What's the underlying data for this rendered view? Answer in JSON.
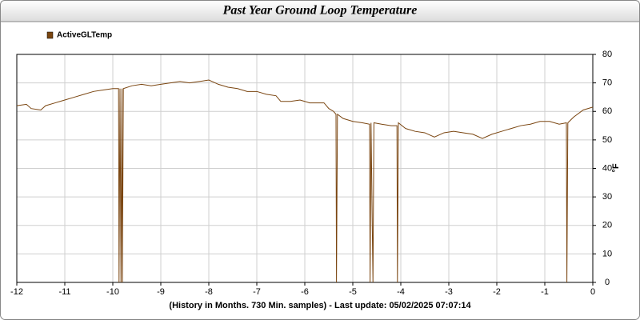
{
  "chart_data": {
    "type": "line",
    "title": "Past Year Ground Loop Temperature",
    "xlabel": "(History in Months. 730 Min. samples) - Last update: 05/02/2025 07:07:14",
    "ylabel": "°F",
    "xlim": [
      -12,
      0
    ],
    "xticks": [
      -12,
      -11,
      -10,
      -9,
      -8,
      -7,
      -6,
      -5,
      -4,
      -3,
      -2,
      -1,
      0
    ],
    "ylim": [
      0,
      80
    ],
    "yticks": [
      0,
      10,
      20,
      30,
      40,
      50,
      60,
      70,
      80
    ],
    "grid": true,
    "legend": "top-left",
    "series": [
      {
        "name": "ActiveGLTemp",
        "color": "#7a4510",
        "x": [
          -12,
          -11.8,
          -11.7,
          -11.5,
          -11.4,
          -11.2,
          -11,
          -10.8,
          -10.6,
          -10.4,
          -10.2,
          -10,
          -9.88,
          -9.87,
          -9.85,
          -9.83,
          -9.81,
          -9.8,
          -9.78,
          -9.6,
          -9.4,
          -9.2,
          -9,
          -8.8,
          -8.6,
          -8.4,
          -8.2,
          -8,
          -7.8,
          -7.6,
          -7.4,
          -7.2,
          -7,
          -6.8,
          -6.6,
          -6.5,
          -6.3,
          -6.1,
          -5.9,
          -5.7,
          -5.6,
          -5.5,
          -5.4,
          -5.35,
          -5.34,
          -5.32,
          -5.2,
          -5,
          -4.8,
          -4.65,
          -4.64,
          -4.62,
          -4.58,
          -4.56,
          -4.4,
          -4.2,
          -4.08,
          -4.07,
          -4.05,
          -3.9,
          -3.7,
          -3.5,
          -3.3,
          -3.1,
          -2.9,
          -2.7,
          -2.5,
          -2.3,
          -2.1,
          -1.9,
          -1.7,
          -1.5,
          -1.3,
          -1.1,
          -0.9,
          -0.7,
          -0.55,
          -0.54,
          -0.52,
          -0.4,
          -0.2,
          0
        ],
        "values": [
          62,
          62.5,
          61,
          60.5,
          62,
          63,
          64,
          65,
          66,
          67,
          67.5,
          68,
          68,
          0,
          68,
          0,
          68,
          0,
          68,
          69,
          69.5,
          69,
          69.5,
          70,
          70.5,
          70,
          70.5,
          71,
          69.5,
          68.5,
          68,
          67,
          67,
          66,
          65.5,
          63.5,
          63.5,
          64,
          63,
          63,
          63,
          61,
          60,
          59,
          0,
          59,
          57.5,
          56.5,
          56,
          55.5,
          0,
          56,
          0,
          56,
          55.5,
          55,
          55,
          0,
          56,
          54,
          53,
          52.5,
          51,
          52.5,
          53,
          52.5,
          52,
          50.5,
          52,
          53,
          54,
          55,
          55.5,
          56.5,
          56.5,
          55.5,
          56,
          0,
          56,
          58,
          60.5,
          61.5
        ]
      }
    ]
  }
}
